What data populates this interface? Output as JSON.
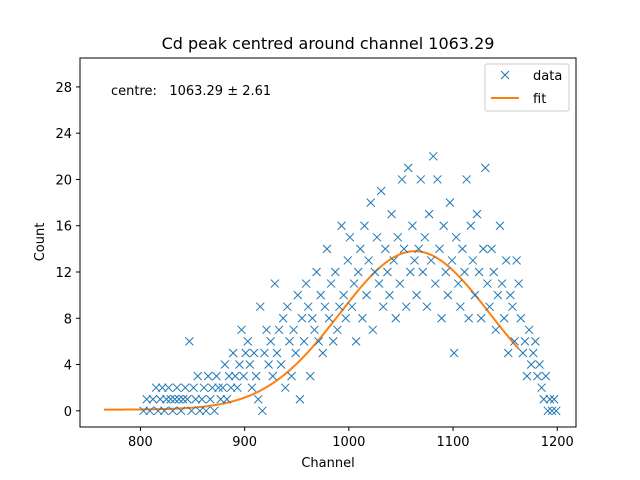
{
  "chart_data": {
    "type": "scatter",
    "title": "Cd peak centred around channel 1063.29",
    "xlabel": "Channel",
    "ylabel": "Count",
    "xlim": [
      742,
      1218
    ],
    "ylim": [
      -1.4,
      30.5
    ],
    "xticks": [
      800,
      900,
      1000,
      1100,
      1200
    ],
    "yticks": [
      0,
      4,
      8,
      12,
      16,
      20,
      24,
      28
    ],
    "grid": false,
    "legend_position": "top-right",
    "annotation": "centre:   1063.29 ± 2.61",
    "colors": {
      "data": "#1f77b4",
      "fit": "#ff7f0e"
    },
    "series": [
      {
        "name": "data",
        "kind": "scatter",
        "marker": "x",
        "points": [
          [
            803,
            0
          ],
          [
            806,
            1
          ],
          [
            809,
            0
          ],
          [
            812,
            1
          ],
          [
            815,
            2
          ],
          [
            817,
            0
          ],
          [
            819,
            1
          ],
          [
            821,
            2
          ],
          [
            823,
            0
          ],
          [
            825,
            1
          ],
          [
            827,
            2
          ],
          [
            829,
            1
          ],
          [
            831,
            0
          ],
          [
            833,
            1
          ],
          [
            835,
            2
          ],
          [
            837,
            1
          ],
          [
            839,
            0
          ],
          [
            841,
            1
          ],
          [
            843,
            2
          ],
          [
            845,
            1
          ],
          [
            847,
            6
          ],
          [
            849,
            0
          ],
          [
            851,
            2
          ],
          [
            853,
            1
          ],
          [
            855,
            3
          ],
          [
            857,
            0
          ],
          [
            859,
            1
          ],
          [
            861,
            2
          ],
          [
            863,
            0
          ],
          [
            865,
            3
          ],
          [
            867,
            1
          ],
          [
            869,
            2
          ],
          [
            871,
            0
          ],
          [
            873,
            3
          ],
          [
            875,
            2
          ],
          [
            877,
            1
          ],
          [
            879,
            2
          ],
          [
            881,
            4
          ],
          [
            883,
            1
          ],
          [
            885,
            3
          ],
          [
            887,
            2
          ],
          [
            889,
            5
          ],
          [
            891,
            3
          ],
          [
            893,
            2
          ],
          [
            895,
            4
          ],
          [
            897,
            7
          ],
          [
            899,
            3
          ],
          [
            901,
            5
          ],
          [
            903,
            6
          ],
          [
            905,
            4
          ],
          [
            907,
            2
          ],
          [
            909,
            5
          ],
          [
            911,
            3
          ],
          [
            913,
            1
          ],
          [
            915,
            9
          ],
          [
            917,
            0
          ],
          [
            919,
            5
          ],
          [
            921,
            7
          ],
          [
            923,
            4
          ],
          [
            925,
            6
          ],
          [
            927,
            3
          ],
          [
            929,
            11
          ],
          [
            931,
            5
          ],
          [
            933,
            7
          ],
          [
            935,
            4
          ],
          [
            937,
            8
          ],
          [
            939,
            2
          ],
          [
            941,
            9
          ],
          [
            943,
            6
          ],
          [
            945,
            3
          ],
          [
            947,
            7
          ],
          [
            949,
            5
          ],
          [
            951,
            10
          ],
          [
            953,
            1
          ],
          [
            955,
            8
          ],
          [
            957,
            6
          ],
          [
            959,
            11
          ],
          [
            961,
            9
          ],
          [
            963,
            3
          ],
          [
            965,
            8
          ],
          [
            967,
            7
          ],
          [
            969,
            12
          ],
          [
            971,
            6
          ],
          [
            973,
            10
          ],
          [
            975,
            5
          ],
          [
            977,
            9
          ],
          [
            979,
            14
          ],
          [
            981,
            8
          ],
          [
            983,
            11
          ],
          [
            985,
            6
          ],
          [
            987,
            12
          ],
          [
            989,
            7
          ],
          [
            991,
            9
          ],
          [
            993,
            16
          ],
          [
            995,
            10
          ],
          [
            997,
            8
          ],
          [
            999,
            13
          ],
          [
            1001,
            15
          ],
          [
            1003,
            9
          ],
          [
            1005,
            11
          ],
          [
            1007,
            6
          ],
          [
            1009,
            12
          ],
          [
            1011,
            14
          ],
          [
            1013,
            8
          ],
          [
            1015,
            16
          ],
          [
            1017,
            10
          ],
          [
            1019,
            13
          ],
          [
            1021,
            18
          ],
          [
            1023,
            7
          ],
          [
            1025,
            12
          ],
          [
            1027,
            15
          ],
          [
            1029,
            11
          ],
          [
            1031,
            19
          ],
          [
            1033,
            9
          ],
          [
            1035,
            14
          ],
          [
            1037,
            12
          ],
          [
            1039,
            10
          ],
          [
            1041,
            17
          ],
          [
            1043,
            13
          ],
          [
            1045,
            8
          ],
          [
            1047,
            15
          ],
          [
            1049,
            11
          ],
          [
            1051,
            20
          ],
          [
            1053,
            14
          ],
          [
            1055,
            9
          ],
          [
            1057,
            21
          ],
          [
            1059,
            12
          ],
          [
            1061,
            16
          ],
          [
            1063,
            13
          ],
          [
            1065,
            10
          ],
          [
            1067,
            14
          ],
          [
            1069,
            20
          ],
          [
            1071,
            12
          ],
          [
            1073,
            15
          ],
          [
            1075,
            9
          ],
          [
            1077,
            17
          ],
          [
            1079,
            13
          ],
          [
            1081,
            22
          ],
          [
            1083,
            11
          ],
          [
            1085,
            20
          ],
          [
            1087,
            14
          ],
          [
            1089,
            8
          ],
          [
            1091,
            16
          ],
          [
            1093,
            12
          ],
          [
            1095,
            10
          ],
          [
            1097,
            18
          ],
          [
            1099,
            13
          ],
          [
            1101,
            5
          ],
          [
            1103,
            15
          ],
          [
            1105,
            11
          ],
          [
            1107,
            9
          ],
          [
            1109,
            14
          ],
          [
            1111,
            12
          ],
          [
            1113,
            20
          ],
          [
            1115,
            8
          ],
          [
            1117,
            16
          ],
          [
            1119,
            13
          ],
          [
            1121,
            10
          ],
          [
            1123,
            17
          ],
          [
            1125,
            12
          ],
          [
            1127,
            8
          ],
          [
            1129,
            14
          ],
          [
            1131,
            21
          ],
          [
            1133,
            11
          ],
          [
            1135,
            9
          ],
          [
            1137,
            14
          ],
          [
            1139,
            12
          ],
          [
            1141,
            7
          ],
          [
            1143,
            10
          ],
          [
            1145,
            16
          ],
          [
            1147,
            11
          ],
          [
            1149,
            8
          ],
          [
            1151,
            13
          ],
          [
            1153,
            5
          ],
          [
            1155,
            10
          ],
          [
            1157,
            9
          ],
          [
            1159,
            6
          ],
          [
            1161,
            13
          ],
          [
            1163,
            11
          ],
          [
            1165,
            8
          ],
          [
            1167,
            5
          ],
          [
            1169,
            6
          ],
          [
            1171,
            3
          ],
          [
            1173,
            7
          ],
          [
            1175,
            4
          ],
          [
            1177,
            5
          ],
          [
            1179,
            6
          ],
          [
            1181,
            3
          ],
          [
            1183,
            4
          ],
          [
            1185,
            2
          ],
          [
            1187,
            1
          ],
          [
            1189,
            3
          ],
          [
            1191,
            0
          ],
          [
            1193,
            1
          ],
          [
            1195,
            0
          ],
          [
            1197,
            1
          ],
          [
            1199,
            0
          ]
        ]
      },
      {
        "name": "fit",
        "kind": "line",
        "gaussian": {
          "amplitude": 13.7,
          "center": 1063.29,
          "sigma": 72,
          "offset": 0.1
        },
        "x_range": [
          765,
          1163
        ]
      }
    ]
  }
}
